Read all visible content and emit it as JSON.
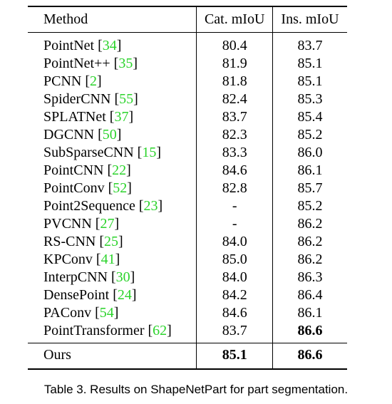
{
  "table": {
    "headers": {
      "method": "Method",
      "cat_miou": "Cat. mIoU",
      "ins_miou": "Ins. mIoU"
    },
    "rows": [
      {
        "method": "PointNet",
        "cite": "34",
        "cat": "80.4",
        "ins": "83.7"
      },
      {
        "method": "PointNet++",
        "cite": "35",
        "cat": "81.9",
        "ins": "85.1"
      },
      {
        "method": "PCNN",
        "cite": "2",
        "cat": "81.8",
        "ins": "85.1"
      },
      {
        "method": "SpiderCNN",
        "cite": "55",
        "cat": "82.4",
        "ins": "85.3"
      },
      {
        "method": "SPLATNet",
        "cite": "37",
        "cat": "83.7",
        "ins": "85.4"
      },
      {
        "method": "DGCNN",
        "cite": "50",
        "cat": "82.3",
        "ins": "85.2"
      },
      {
        "method": "SubSparseCNN",
        "cite": "15",
        "cat": "83.3",
        "ins": "86.0"
      },
      {
        "method": "PointCNN",
        "cite": "22",
        "cat": "84.6",
        "ins": "86.1"
      },
      {
        "method": "PointConv",
        "cite": "52",
        "cat": "82.8",
        "ins": "85.7"
      },
      {
        "method": "Point2Sequence",
        "cite": "23",
        "cat": "-",
        "ins": "85.2"
      },
      {
        "method": "PVCNN",
        "cite": "27",
        "cat": "-",
        "ins": "86.2"
      },
      {
        "method": "RS-CNN",
        "cite": "25",
        "cat": "84.0",
        "ins": "86.2"
      },
      {
        "method": "KPConv",
        "cite": "41",
        "cat": "85.0",
        "ins": "86.2"
      },
      {
        "method": "InterpCNN",
        "cite": "30",
        "cat": "84.0",
        "ins": "86.3"
      },
      {
        "method": "DensePoint",
        "cite": "24",
        "cat": "84.2",
        "ins": "86.4"
      },
      {
        "method": "PAConv",
        "cite": "54",
        "cat": "84.6",
        "ins": "86.1"
      },
      {
        "method": "PointTransformer",
        "cite": "62",
        "cat": "83.7",
        "ins": "86.6",
        "ins_bold": true
      }
    ],
    "ours": {
      "method": "Ours",
      "cat": "85.1",
      "ins": "86.6"
    }
  },
  "caption": "Table 3. Results on ShapeNetPart for part segmentation.",
  "colors": {
    "citation": "#2bd32b",
    "text": "#000000"
  }
}
